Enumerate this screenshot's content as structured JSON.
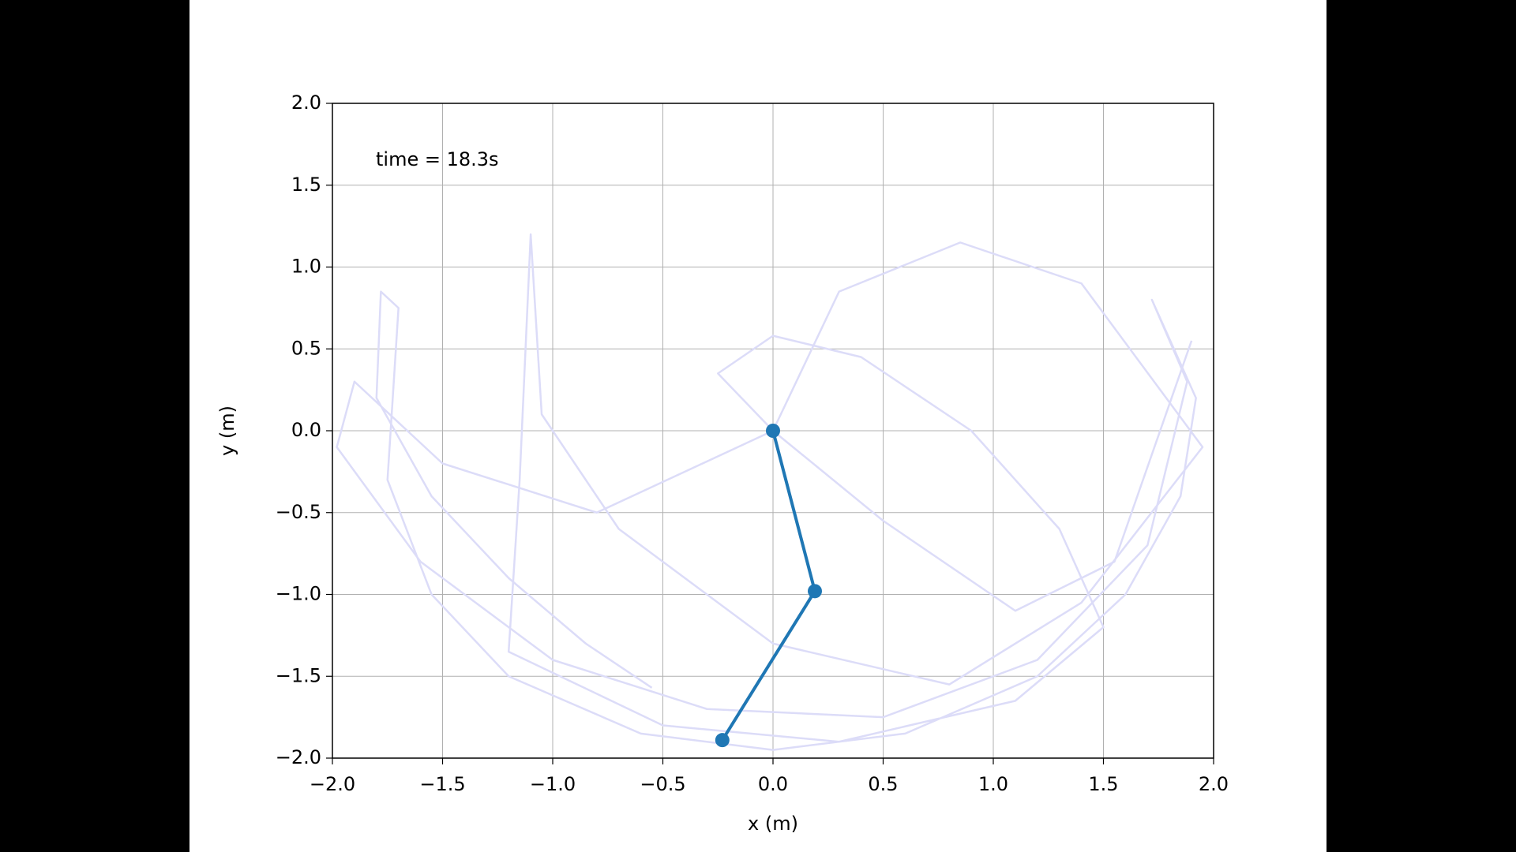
{
  "chart_data": {
    "type": "line",
    "annotation": "time = 18.3s",
    "xlabel": "x (m)",
    "ylabel": "y (m)",
    "xlim": [
      -2,
      2
    ],
    "ylim": [
      -2,
      2
    ],
    "xticks": [
      {
        "value": -2,
        "label": "−2.0"
      },
      {
        "value": -1.5,
        "label": "−1.5"
      },
      {
        "value": -1,
        "label": "−1.0"
      },
      {
        "value": -0.5,
        "label": "−0.5"
      },
      {
        "value": 0,
        "label": "0.0"
      },
      {
        "value": 0.5,
        "label": "0.5"
      },
      {
        "value": 1,
        "label": "1.0"
      },
      {
        "value": 1.5,
        "label": "1.5"
      },
      {
        "value": 2,
        "label": "2.0"
      }
    ],
    "yticks": [
      {
        "value": -2,
        "label": "−2.0"
      },
      {
        "value": -1.5,
        "label": "−1.5"
      },
      {
        "value": -1,
        "label": "−1.0"
      },
      {
        "value": -0.5,
        "label": "−0.5"
      },
      {
        "value": 0,
        "label": "0.0"
      },
      {
        "value": 0.5,
        "label": "0.5"
      },
      {
        "value": 1,
        "label": "1.0"
      },
      {
        "value": 1.5,
        "label": "1.5"
      },
      {
        "value": 2,
        "label": "2.0"
      }
    ],
    "grid": true,
    "series": [
      {
        "color": "#dcdcf8",
        "marker": false,
        "x": [
          -0.55,
          -0.85,
          -1.2,
          -1.55,
          -1.8,
          -1.78,
          -1.7,
          -1.75,
          -1.55,
          -1.2,
          -0.6,
          0.0,
          0.6,
          1.2,
          1.6,
          1.85,
          1.92,
          1.72,
          1.88,
          1.7,
          1.2,
          0.5,
          -0.3,
          -1.0,
          -1.6,
          -1.98,
          -1.9,
          -1.5,
          -0.8,
          0.0,
          -0.25,
          0.0,
          0.4,
          0.9,
          1.3,
          1.5,
          1.1,
          0.3,
          -0.5,
          -1.2,
          -1.15,
          -1.1,
          -1.05,
          -0.7,
          0.0,
          0.8,
          1.4,
          1.95,
          1.4,
          0.85,
          0.3,
          0.0,
          0.5,
          1.1,
          1.55,
          1.9
        ],
        "values": [
          -1.57,
          -1.3,
          -0.9,
          -0.4,
          0.2,
          0.85,
          0.75,
          -0.3,
          -1.0,
          -1.5,
          -1.85,
          -1.95,
          -1.85,
          -1.5,
          -1.0,
          -0.4,
          0.2,
          0.8,
          0.3,
          -0.7,
          -1.4,
          -1.75,
          -1.7,
          -1.4,
          -0.8,
          -0.1,
          0.3,
          -0.2,
          -0.5,
          0.0,
          0.35,
          0.58,
          0.45,
          0.0,
          -0.6,
          -1.2,
          -1.65,
          -1.9,
          -1.8,
          -1.35,
          -0.3,
          1.2,
          0.1,
          -0.6,
          -1.3,
          -1.55,
          -1.05,
          -0.1,
          0.9,
          1.15,
          0.85,
          0.0,
          -0.55,
          -1.1,
          -0.8,
          0.55
        ]
      },
      {
        "color": "#1f77b4",
        "marker": true,
        "x": [
          0.0,
          0.19,
          -0.23
        ],
        "values": [
          0.0,
          -0.98,
          -1.89
        ]
      }
    ]
  }
}
